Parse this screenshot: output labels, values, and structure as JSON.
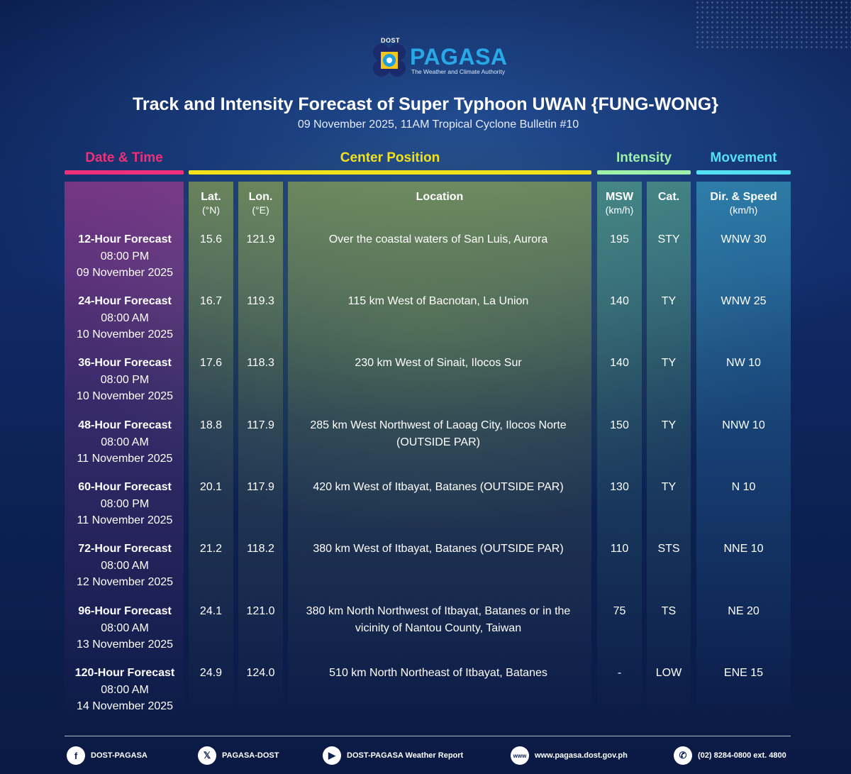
{
  "header": {
    "dost_label": "DOST",
    "agency_name": "PAGASA",
    "agency_tagline": "The Weather and Climate Authority",
    "title": "Track and Intensity Forecast of Super Typhoon UWAN {FUNG-WONG}",
    "subtitle": "09 November 2025, 11AM Tropical Cyclone Bulletin #10"
  },
  "groups": {
    "date_time": "Date & Time",
    "center_position": "Center Position",
    "intensity": "Intensity",
    "movement": "Movement"
  },
  "colors": {
    "date_time": "#ee2f7a",
    "center_position": "#f3e21a",
    "intensity": "#9ff0a8",
    "movement": "#52e0f2"
  },
  "columns": {
    "lat": {
      "label": "Lat.",
      "unit": "(°N)"
    },
    "lon": {
      "label": "Lon.",
      "unit": "(°E)"
    },
    "location": {
      "label": "Location"
    },
    "msw": {
      "label": "MSW",
      "unit": "(km/h)"
    },
    "cat": {
      "label": "Cat."
    },
    "dir": {
      "label": "Dir. & Speed",
      "unit": "(km/h)"
    }
  },
  "rows": [
    {
      "forecast": "12-Hour Forecast",
      "time": "08:00 PM",
      "date": "09 November 2025",
      "lat": "15.6",
      "lon": "121.9",
      "location": "Over the coastal waters of San Luis, Aurora",
      "msw": "195",
      "cat": "STY",
      "dir": "WNW 30"
    },
    {
      "forecast": "24-Hour Forecast",
      "time": "08:00 AM",
      "date": "10 November 2025",
      "lat": "16.7",
      "lon": "119.3",
      "location": "115 km West of Bacnotan, La Union",
      "msw": "140",
      "cat": "TY",
      "dir": "WNW 25"
    },
    {
      "forecast": "36-Hour Forecast",
      "time": "08:00 PM",
      "date": "10 November 2025",
      "lat": "17.6",
      "lon": "118.3",
      "location": "230 km West of Sinait, Ilocos Sur",
      "msw": "140",
      "cat": "TY",
      "dir": "NW 10"
    },
    {
      "forecast": "48-Hour Forecast",
      "time": "08:00 AM",
      "date": "11 November 2025",
      "lat": "18.8",
      "lon": "117.9",
      "location": "285 km West Northwest of Laoag City, Ilocos Norte (OUTSIDE PAR)",
      "msw": "150",
      "cat": "TY",
      "dir": "NNW 10"
    },
    {
      "forecast": "60-Hour Forecast",
      "time": "08:00 PM",
      "date": "11 November 2025",
      "lat": "20.1",
      "lon": "117.9",
      "location": "420 km West of Itbayat, Batanes (OUTSIDE PAR)",
      "msw": "130",
      "cat": "TY",
      "dir": "N 10"
    },
    {
      "forecast": "72-Hour Forecast",
      "time": "08:00 AM",
      "date": "12 November 2025",
      "lat": "21.2",
      "lon": "118.2",
      "location": "380 km West of Itbayat, Batanes (OUTSIDE PAR)",
      "msw": "110",
      "cat": "STS",
      "dir": "NNE 10"
    },
    {
      "forecast": "96-Hour Forecast",
      "time": "08:00 AM",
      "date": "13 November 2025",
      "lat": "24.1",
      "lon": "121.0",
      "location": "380 km North Northwest of Itbayat, Batanes or in the vicinity of Nantou County, Taiwan",
      "msw": "75",
      "cat": "TS",
      "dir": "NE 20"
    },
    {
      "forecast": "120-Hour Forecast",
      "time": "08:00 AM",
      "date": "14 November 2025",
      "lat": "24.9",
      "lon": "124.0",
      "location": "510 km North Northeast of Itbayat, Batanes",
      "msw": "-",
      "cat": "LOW",
      "dir": "ENE 15"
    }
  ],
  "footer": {
    "facebook": {
      "icon": "facebook-icon",
      "label": "DOST-PAGASA"
    },
    "x": {
      "icon": "x-icon",
      "label": "PAGASA-DOST"
    },
    "youtube": {
      "icon": "youtube-icon",
      "label": "DOST-PAGASA Weather Report"
    },
    "website": {
      "icon": "globe-icon",
      "label": "www.pagasa.dost.gov.ph"
    },
    "phone": {
      "icon": "phone-icon",
      "label": "(02) 8284-0800 ext. 4800"
    }
  }
}
